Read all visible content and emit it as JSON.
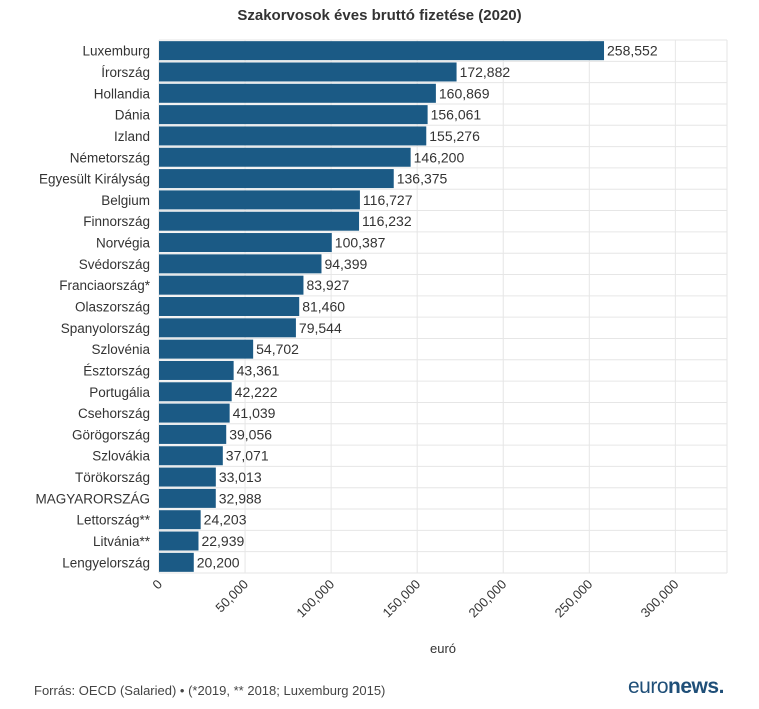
{
  "chart_data": {
    "type": "bar",
    "orientation": "horizontal",
    "title": "Szakorvosok éves bruttó fizetése (2020)",
    "xlabel": "euró",
    "ylabel": "",
    "xlim": [
      0,
      330000
    ],
    "xticks": [
      0,
      50000,
      100000,
      150000,
      200000,
      250000,
      300000
    ],
    "xtick_labels": [
      "0",
      "50,000",
      "100,000",
      "150,000",
      "200,000",
      "250,000",
      "300,000"
    ],
    "grid": true,
    "bar_color": "#1b5a85",
    "categories": [
      "Luxemburg",
      "Írország",
      "Hollandia",
      "Dánia",
      "Izland",
      "Németország",
      "Egyesült Királyság",
      "Belgium",
      "Finnország",
      "Norvégia",
      "Svédország",
      "Franciaország*",
      "Olaszország",
      "Spanyolország",
      "Szlovénia",
      "Észtország",
      "Portugália",
      "Csehország",
      "Görögország",
      "Szlovákia",
      "Törökország",
      "MAGYARORSZÁG",
      "Lettország**",
      "Litvánia**",
      "Lengyelország"
    ],
    "values": [
      258552,
      172882,
      160869,
      156061,
      155276,
      146200,
      136375,
      116727,
      116232,
      100387,
      94399,
      83927,
      81460,
      79544,
      54702,
      43361,
      42222,
      41039,
      39056,
      37071,
      33013,
      32988,
      24203,
      22939,
      20200
    ],
    "value_labels": [
      "258,552",
      "172,882",
      "160,869",
      "156,061",
      "155,276",
      "146,200",
      "136,375",
      "116,727",
      "116,232",
      "100,387",
      "94,399",
      "83,927",
      "81,460",
      "79,544",
      "54,702",
      "43,361",
      "42,222",
      "41,039",
      "39,056",
      "37,071",
      "33,013",
      "32,988",
      "24,203",
      "22,939",
      "20,200"
    ]
  },
  "footer": {
    "source": "Forrás: OECD (Salaried) • (*2019, ** 2018; Luxemburg 2015)",
    "logo_light": "euro",
    "logo_bold": "news",
    "logo_dot": "."
  },
  "colors": {
    "bar": "#1b5a85",
    "grid": "#e6e6e6",
    "text": "#333333",
    "logo": "#1f4f78"
  }
}
